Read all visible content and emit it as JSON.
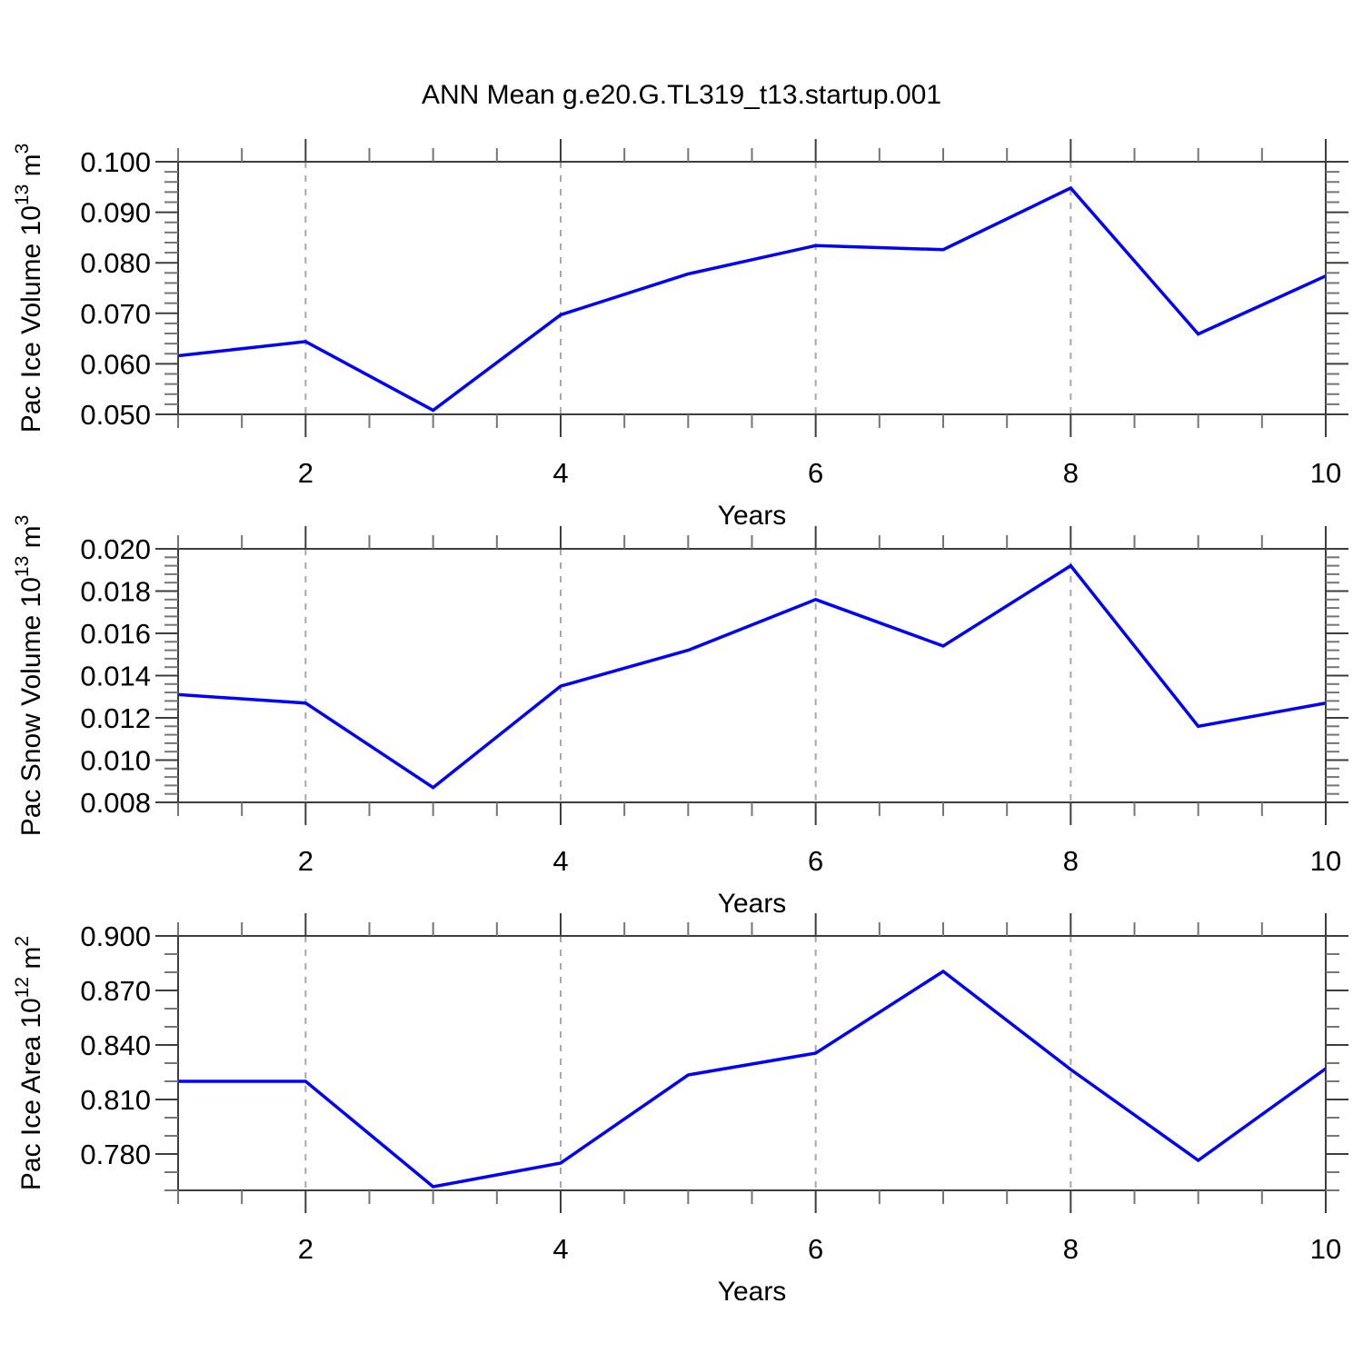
{
  "title": "ANN Mean g.e20.G.TL319_t13.startup.001",
  "colors": {
    "line": "#0000ff",
    "grid": "#a8a8a8",
    "axis": "#3d3d3d",
    "minor_tick": "#757575",
    "text": "#000000",
    "background": "#ffffff"
  },
  "x_axis": {
    "label": "Years",
    "range": [
      1,
      10
    ],
    "major_ticks": [
      2,
      4,
      6,
      8,
      10
    ],
    "major_tick_labels": [
      "2",
      "4",
      "6",
      "8",
      "10"
    ],
    "minor_step": 0.5,
    "grid_years": [
      2,
      4,
      6,
      8
    ]
  },
  "chart_data": [
    {
      "type": "line",
      "ylabel": "Pac Ice Volume 10^13 m^3",
      "ylabel_parts": [
        {
          "t": "Pac Ice Volume 10",
          "sup": false
        },
        {
          "t": "13",
          "sup": true
        },
        {
          "t": " m",
          "sup": false
        },
        {
          "t": "3",
          "sup": true
        }
      ],
      "xlabel": "Years",
      "x": [
        1,
        2,
        3,
        4,
        5,
        6,
        7,
        8,
        9,
        10
      ],
      "values": [
        0.0616,
        0.0644,
        0.0508,
        0.0697,
        0.0778,
        0.0834,
        0.0826,
        0.0948,
        0.0659,
        0.0774
      ],
      "ylim": [
        0.05,
        0.1
      ],
      "y_major_ticks": [
        {
          "v": 0.05,
          "label": "0.050"
        },
        {
          "v": 0.06,
          "label": "0.060"
        },
        {
          "v": 0.07,
          "label": "0.070"
        },
        {
          "v": 0.08,
          "label": "0.080"
        },
        {
          "v": 0.09,
          "label": "0.090"
        },
        {
          "v": 0.1,
          "label": "0.100"
        }
      ],
      "y_minor_step": 0.002,
      "grid": "vertical-dashed",
      "legend": "none"
    },
    {
      "type": "line",
      "ylabel": "Pac Snow Volume 10^13 m^3",
      "ylabel_parts": [
        {
          "t": "Pac Snow Volume 10",
          "sup": false
        },
        {
          "t": "13",
          "sup": true
        },
        {
          "t": " m",
          "sup": false
        },
        {
          "t": "3",
          "sup": true
        }
      ],
      "xlabel": "Years",
      "x": [
        1,
        2,
        3,
        4,
        5,
        6,
        7,
        8,
        9,
        10
      ],
      "values": [
        0.0131,
        0.0127,
        0.0087,
        0.0135,
        0.0152,
        0.0176,
        0.0154,
        0.0192,
        0.0116,
        0.0127
      ],
      "ylim": [
        0.008,
        0.02
      ],
      "y_major_ticks": [
        {
          "v": 0.008,
          "label": "0.008"
        },
        {
          "v": 0.01,
          "label": "0.010"
        },
        {
          "v": 0.012,
          "label": "0.012"
        },
        {
          "v": 0.014,
          "label": "0.014"
        },
        {
          "v": 0.016,
          "label": "0.016"
        },
        {
          "v": 0.018,
          "label": "0.018"
        },
        {
          "v": 0.02,
          "label": "0.020"
        }
      ],
      "y_minor_step": 0.0004,
      "grid": "vertical-dashed",
      "legend": "none"
    },
    {
      "type": "line",
      "ylabel": "Pac Ice Area 10^12 m^2",
      "ylabel_parts": [
        {
          "t": "Pac Ice Area 10",
          "sup": false
        },
        {
          "t": "12",
          "sup": true
        },
        {
          "t": " m",
          "sup": false
        },
        {
          "t": "2",
          "sup": true
        }
      ],
      "xlabel": "Years",
      "x": [
        1,
        2,
        3,
        4,
        5,
        6,
        7,
        8,
        9,
        10
      ],
      "values": [
        0.82,
        0.82,
        0.762,
        0.775,
        0.8235,
        0.8355,
        0.8805,
        0.8265,
        0.7765,
        0.827
      ],
      "ylim": [
        0.76,
        0.9
      ],
      "y_major_ticks": [
        {
          "v": 0.78,
          "label": "0.780"
        },
        {
          "v": 0.81,
          "label": "0.810"
        },
        {
          "v": 0.84,
          "label": "0.840"
        },
        {
          "v": 0.87,
          "label": "0.870"
        },
        {
          "v": 0.9,
          "label": "0.900"
        }
      ],
      "y_minor_step": 0.01,
      "grid": "vertical-dashed",
      "legend": "none"
    }
  ]
}
